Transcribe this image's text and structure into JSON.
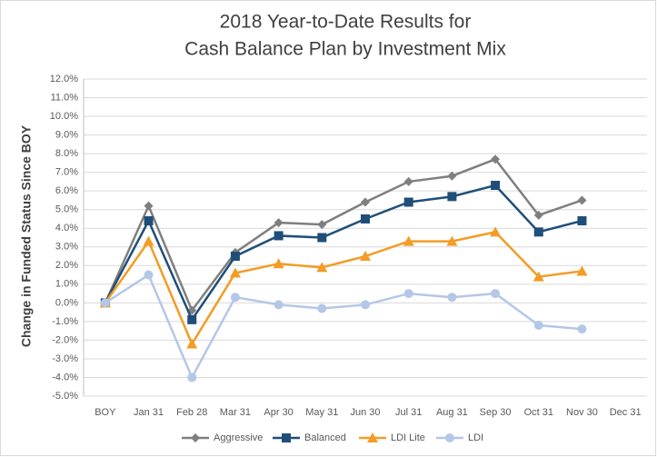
{
  "chart_data": {
    "type": "line",
    "title": [
      "2018 Year-to-Date Results for",
      "Cash Balance Plan by Investment Mix"
    ],
    "y_label": "Change in Funded Status Since BOY",
    "categories": [
      "BOY",
      "Jan 31",
      "Feb 28",
      "Mar 31",
      "Apr 30",
      "May 31",
      "Jun 30",
      "Jul 31",
      "Aug 31",
      "Sep 30",
      "Oct 31",
      "Nov 30",
      "Dec 31"
    ],
    "series": [
      {
        "name": "Aggressive",
        "color": "#7f7f7f",
        "marker": "diamond",
        "values": [
          0,
          5.2,
          -0.4,
          2.7,
          4.3,
          4.2,
          5.4,
          6.5,
          6.8,
          7.7,
          4.7,
          5.5,
          null
        ]
      },
      {
        "name": "Balanced",
        "color": "#1f4e79",
        "marker": "square",
        "values": [
          0,
          4.4,
          -0.9,
          2.5,
          3.6,
          3.5,
          4.5,
          5.4,
          5.7,
          6.3,
          3.8,
          4.4,
          null
        ]
      },
      {
        "name": "LDI Lite",
        "color": "#f39c26",
        "marker": "triangle",
        "values": [
          0,
          3.3,
          -2.2,
          1.6,
          2.1,
          1.9,
          2.5,
          3.3,
          3.3,
          3.8,
          1.4,
          1.7,
          null
        ]
      },
      {
        "name": "LDI",
        "color": "#b4c7e7",
        "marker": "circle",
        "values": [
          0,
          1.5,
          -4.0,
          0.3,
          -0.1,
          -0.3,
          -0.1,
          0.5,
          0.3,
          0.5,
          -1.2,
          -1.4,
          null
        ]
      }
    ],
    "ylim": [
      -5,
      12
    ],
    "yticks": [
      {
        "value": -5,
        "label": "-5.0%"
      },
      {
        "value": -4,
        "label": "-4.0%"
      },
      {
        "value": -3,
        "label": "-3.0%"
      },
      {
        "value": -2,
        "label": "-2.0%"
      },
      {
        "value": -1,
        "label": "-1.0%"
      },
      {
        "value": 0,
        "label": "0.0%"
      },
      {
        "value": 1,
        "label": "1.0%"
      },
      {
        "value": 2,
        "label": "2.0%"
      },
      {
        "value": 3,
        "label": "3.0%"
      },
      {
        "value": 4,
        "label": "4.0%"
      },
      {
        "value": 5,
        "label": "5.0%"
      },
      {
        "value": 6,
        "label": "6.0%"
      },
      {
        "value": 7,
        "label": "7.0%"
      },
      {
        "value": 8,
        "label": "8.0%"
      },
      {
        "value": 9,
        "label": "9.0%"
      },
      {
        "value": 10,
        "label": "10.0%"
      },
      {
        "value": 11,
        "label": "11.0%"
      },
      {
        "value": 12,
        "label": "12.0%"
      }
    ],
    "grid": true,
    "legend": "bottom"
  }
}
